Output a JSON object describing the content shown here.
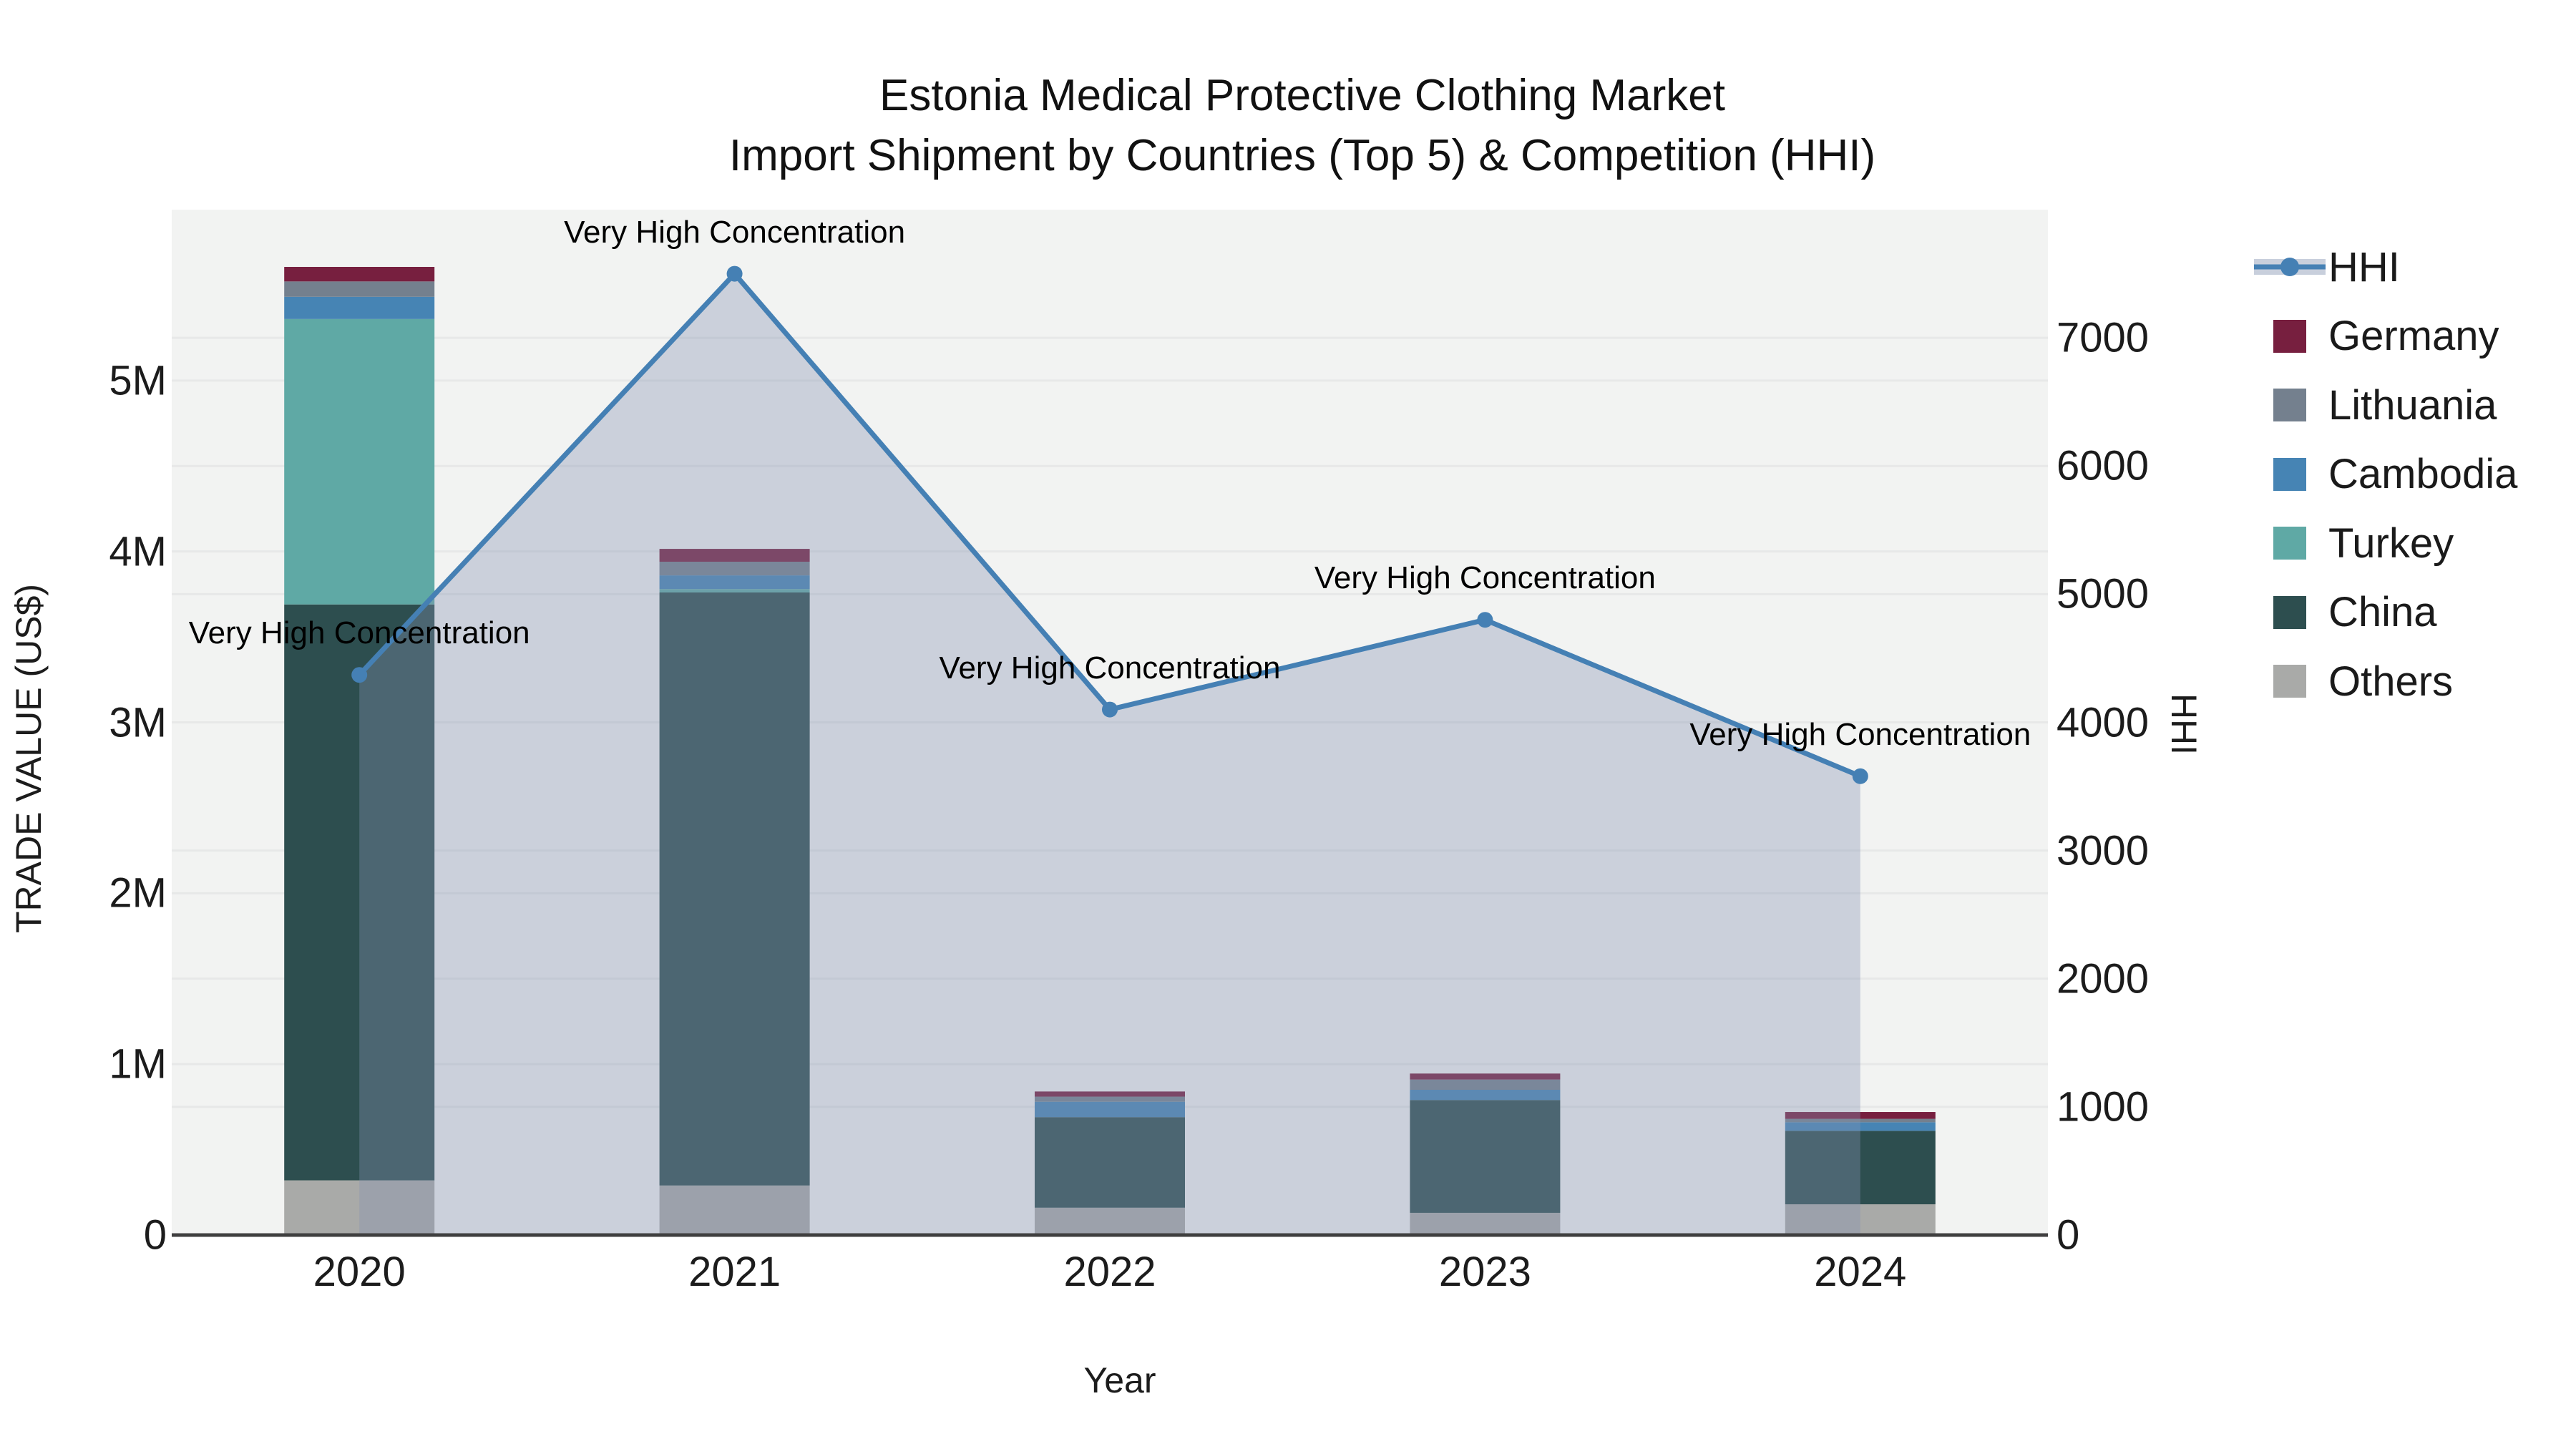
{
  "title": {
    "line1": "Estonia Medical Protective Clothing Market",
    "line2": "Import Shipment by Countries (Top 5) & Competition (HHI)"
  },
  "axes": {
    "x_label": "Year",
    "y_left_label": "TRADE VALUE (US$)",
    "y_right_label": "HHI",
    "x_ticks": [
      "2020",
      "2021",
      "2022",
      "2023",
      "2024"
    ],
    "y_left_ticks": [
      {
        "label": "0",
        "value": 0
      },
      {
        "label": "1M",
        "value": 1
      },
      {
        "label": "2M",
        "value": 2
      },
      {
        "label": "3M",
        "value": 3
      },
      {
        "label": "4M",
        "value": 4
      },
      {
        "label": "5M",
        "value": 5
      }
    ],
    "y_right_ticks": [
      {
        "label": "0",
        "value": 0
      },
      {
        "label": "1000",
        "value": 1000
      },
      {
        "label": "2000",
        "value": 2000
      },
      {
        "label": "3000",
        "value": 3000
      },
      {
        "label": "4000",
        "value": 4000
      },
      {
        "label": "5000",
        "value": 5000
      },
      {
        "label": "6000",
        "value": 6000
      },
      {
        "label": "7000",
        "value": 7000
      }
    ]
  },
  "legend": [
    {
      "label": "HHI",
      "type": "line",
      "color": "#4580b4"
    },
    {
      "label": "Germany",
      "type": "swatch",
      "color": "#771f3f"
    },
    {
      "label": "Lithuania",
      "type": "swatch",
      "color": "#74808e"
    },
    {
      "label": "Cambodia",
      "type": "swatch",
      "color": "#4684b4"
    },
    {
      "label": "Turkey",
      "type": "swatch",
      "color": "#5fa9a5"
    },
    {
      "label": "China",
      "type": "swatch",
      "color": "#2d4e4f"
    },
    {
      "label": "Others",
      "type": "swatch",
      "color": "#a9aaa8"
    }
  ],
  "chart_data": {
    "type": "bar+line",
    "title": "Estonia Medical Protective Clothing Market — Import Shipment by Countries (Top 5) & Competition (HHI)",
    "categories": [
      "2020",
      "2021",
      "2022",
      "2023",
      "2024"
    ],
    "bar_unit": "USD millions",
    "bar_stack_order_bottom_to_top": [
      "Others",
      "China",
      "Turkey",
      "Cambodia",
      "Lithuania",
      "Germany"
    ],
    "series": [
      {
        "name": "Others",
        "color": "#a9aaa8",
        "values": [
          0.32,
          0.29,
          0.16,
          0.13,
          0.18
        ]
      },
      {
        "name": "China",
        "color": "#2d4e4f",
        "values": [
          3.37,
          3.47,
          0.53,
          0.66,
          0.43
        ]
      },
      {
        "name": "Turkey",
        "color": "#5fa9a5",
        "values": [
          1.67,
          0.02,
          0.0,
          0.0,
          0.0
        ]
      },
      {
        "name": "Cambodia",
        "color": "#4684b4",
        "values": [
          0.13,
          0.08,
          0.09,
          0.06,
          0.05
        ]
      },
      {
        "name": "Lithuania",
        "color": "#74808e",
        "values": [
          0.09,
          0.08,
          0.03,
          0.06,
          0.02
        ]
      },
      {
        "name": "Germany",
        "color": "#771f3f",
        "values": [
          0.085,
          0.075,
          0.03,
          0.035,
          0.04
        ]
      }
    ],
    "line_series": {
      "name": "HHI",
      "color": "#4580b4",
      "area_fill": "rgba(134,148,177,0.36)",
      "values": [
        4370,
        7500,
        4100,
        4800,
        3580
      ]
    },
    "annotation_text": "Very High Concentration",
    "annotations": [
      {
        "category": "2020",
        "text": "Very High Concentration"
      },
      {
        "category": "2021",
        "text": "Very High Concentration"
      },
      {
        "category": "2022",
        "text": "Very High Concentration"
      },
      {
        "category": "2023",
        "text": "Very High Concentration"
      },
      {
        "category": "2024",
        "text": "Very High Concentration"
      }
    ],
    "xlabel": "Year",
    "ylabel_left": "TRADE VALUE (US$)",
    "ylabel_right": "HHI",
    "ylim_left": [
      0,
      6
    ],
    "ylim_right": [
      0,
      8000
    ],
    "grid": true,
    "legend_position": "right",
    "plot_background": "#f2f3f2",
    "gridline_color": "#e7e8e8",
    "axis_line_color": "#3f3f3f"
  }
}
